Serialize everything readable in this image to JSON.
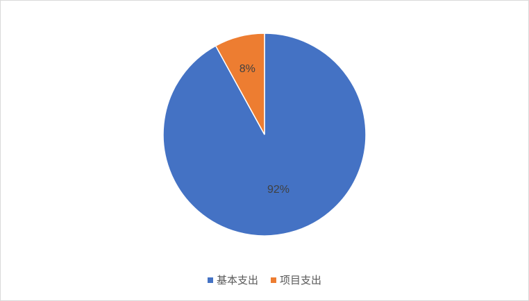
{
  "chart_data": {
    "type": "pie",
    "categories": [
      "基本支出",
      "项目支出"
    ],
    "values": [
      92,
      8
    ],
    "data_labels": [
      "92%",
      "8%"
    ],
    "colors": [
      "#4472C4",
      "#ED7D31"
    ],
    "legend_position": "bottom",
    "start_angle": "12 o'clock",
    "direction": "clockwise from 项目支出 ending at 12 o'clock"
  }
}
